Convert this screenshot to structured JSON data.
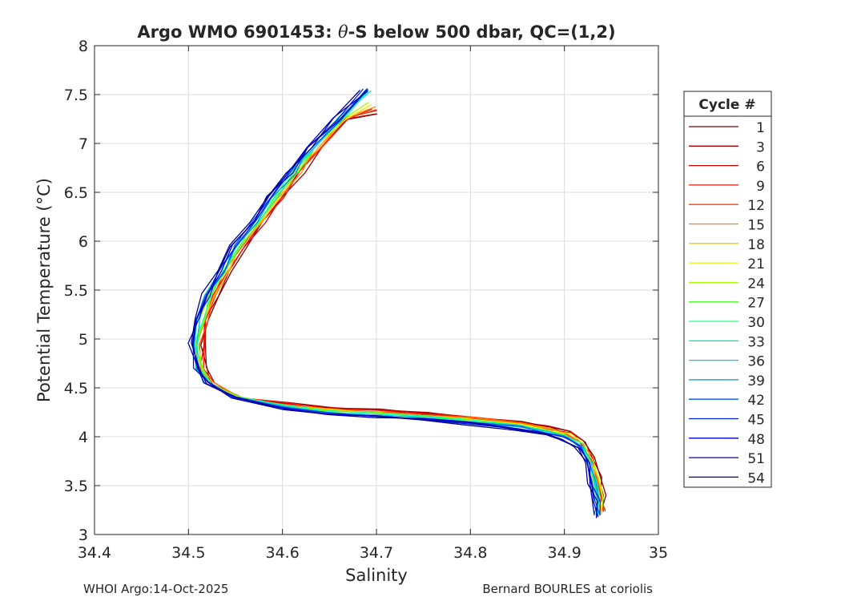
{
  "chart_data": {
    "type": "line",
    "title_prefix": "Argo WMO 6901453: ",
    "title_theta": "θ",
    "title_suffix": "-S below 500 dbar,  QC=(1,2)",
    "xlabel": "Salinity",
    "ylabel": "Potential Temperature (°C)",
    "xlim": [
      34.4,
      35.0
    ],
    "ylim": [
      3.0,
      8.0
    ],
    "xticks": [
      "34.4",
      "34.5",
      "34.6",
      "34.7",
      "34.8",
      "34.9",
      "35"
    ],
    "yticks": [
      "3",
      "3.5",
      "4",
      "4.5",
      "5",
      "5.5",
      "6",
      "6.5",
      "7",
      "7.5",
      "8"
    ],
    "grid": true,
    "legend_title": "Cycle #",
    "legend_placement": "right-outside",
    "series": [
      {
        "name": "1",
        "color": "#800000"
      },
      {
        "name": "3",
        "color": "#a80000"
      },
      {
        "name": "6",
        "color": "#d00000"
      },
      {
        "name": "9",
        "color": "#f81000"
      },
      {
        "name": "12",
        "color": "#ff4000"
      },
      {
        "name": "15",
        "color": "#ff8000"
      },
      {
        "name": "18",
        "color": "#ffc000"
      },
      {
        "name": "21",
        "color": "#f0f000"
      },
      {
        "name": "24",
        "color": "#a0ff00"
      },
      {
        "name": "27",
        "color": "#50ff30"
      },
      {
        "name": "30",
        "color": "#20ff80"
      },
      {
        "name": "33",
        "color": "#00f0c0"
      },
      {
        "name": "36",
        "color": "#00c8f0"
      },
      {
        "name": "39",
        "color": "#0090d0"
      },
      {
        "name": "42",
        "color": "#0050ff"
      },
      {
        "name": "45",
        "color": "#0020e0"
      },
      {
        "name": "48",
        "color": "#0000c8"
      },
      {
        "name": "51",
        "color": "#0000b0"
      },
      {
        "name": "54",
        "color": "#000098"
      }
    ],
    "profile_shape": {
      "salinity": [
        34.69,
        34.66,
        34.63,
        34.61,
        34.59,
        34.57,
        34.55,
        34.535,
        34.52,
        34.51,
        34.505,
        34.51,
        34.52,
        34.55,
        34.6,
        34.65,
        34.7,
        34.75,
        34.8,
        34.85,
        34.88,
        34.9,
        34.915,
        34.925,
        34.93,
        34.935,
        34.935
      ],
      "theta": [
        7.55,
        7.25,
        6.95,
        6.7,
        6.45,
        6.2,
        5.95,
        5.7,
        5.45,
        5.2,
        4.95,
        4.7,
        4.55,
        4.4,
        4.3,
        4.25,
        4.22,
        4.19,
        4.15,
        4.1,
        4.05,
        4.0,
        3.9,
        3.75,
        3.55,
        3.35,
        3.2
      ]
    }
  },
  "footer": {
    "left": "WHOI Argo:14-Oct-2025",
    "right": "Bernard BOURLES at coriolis"
  }
}
